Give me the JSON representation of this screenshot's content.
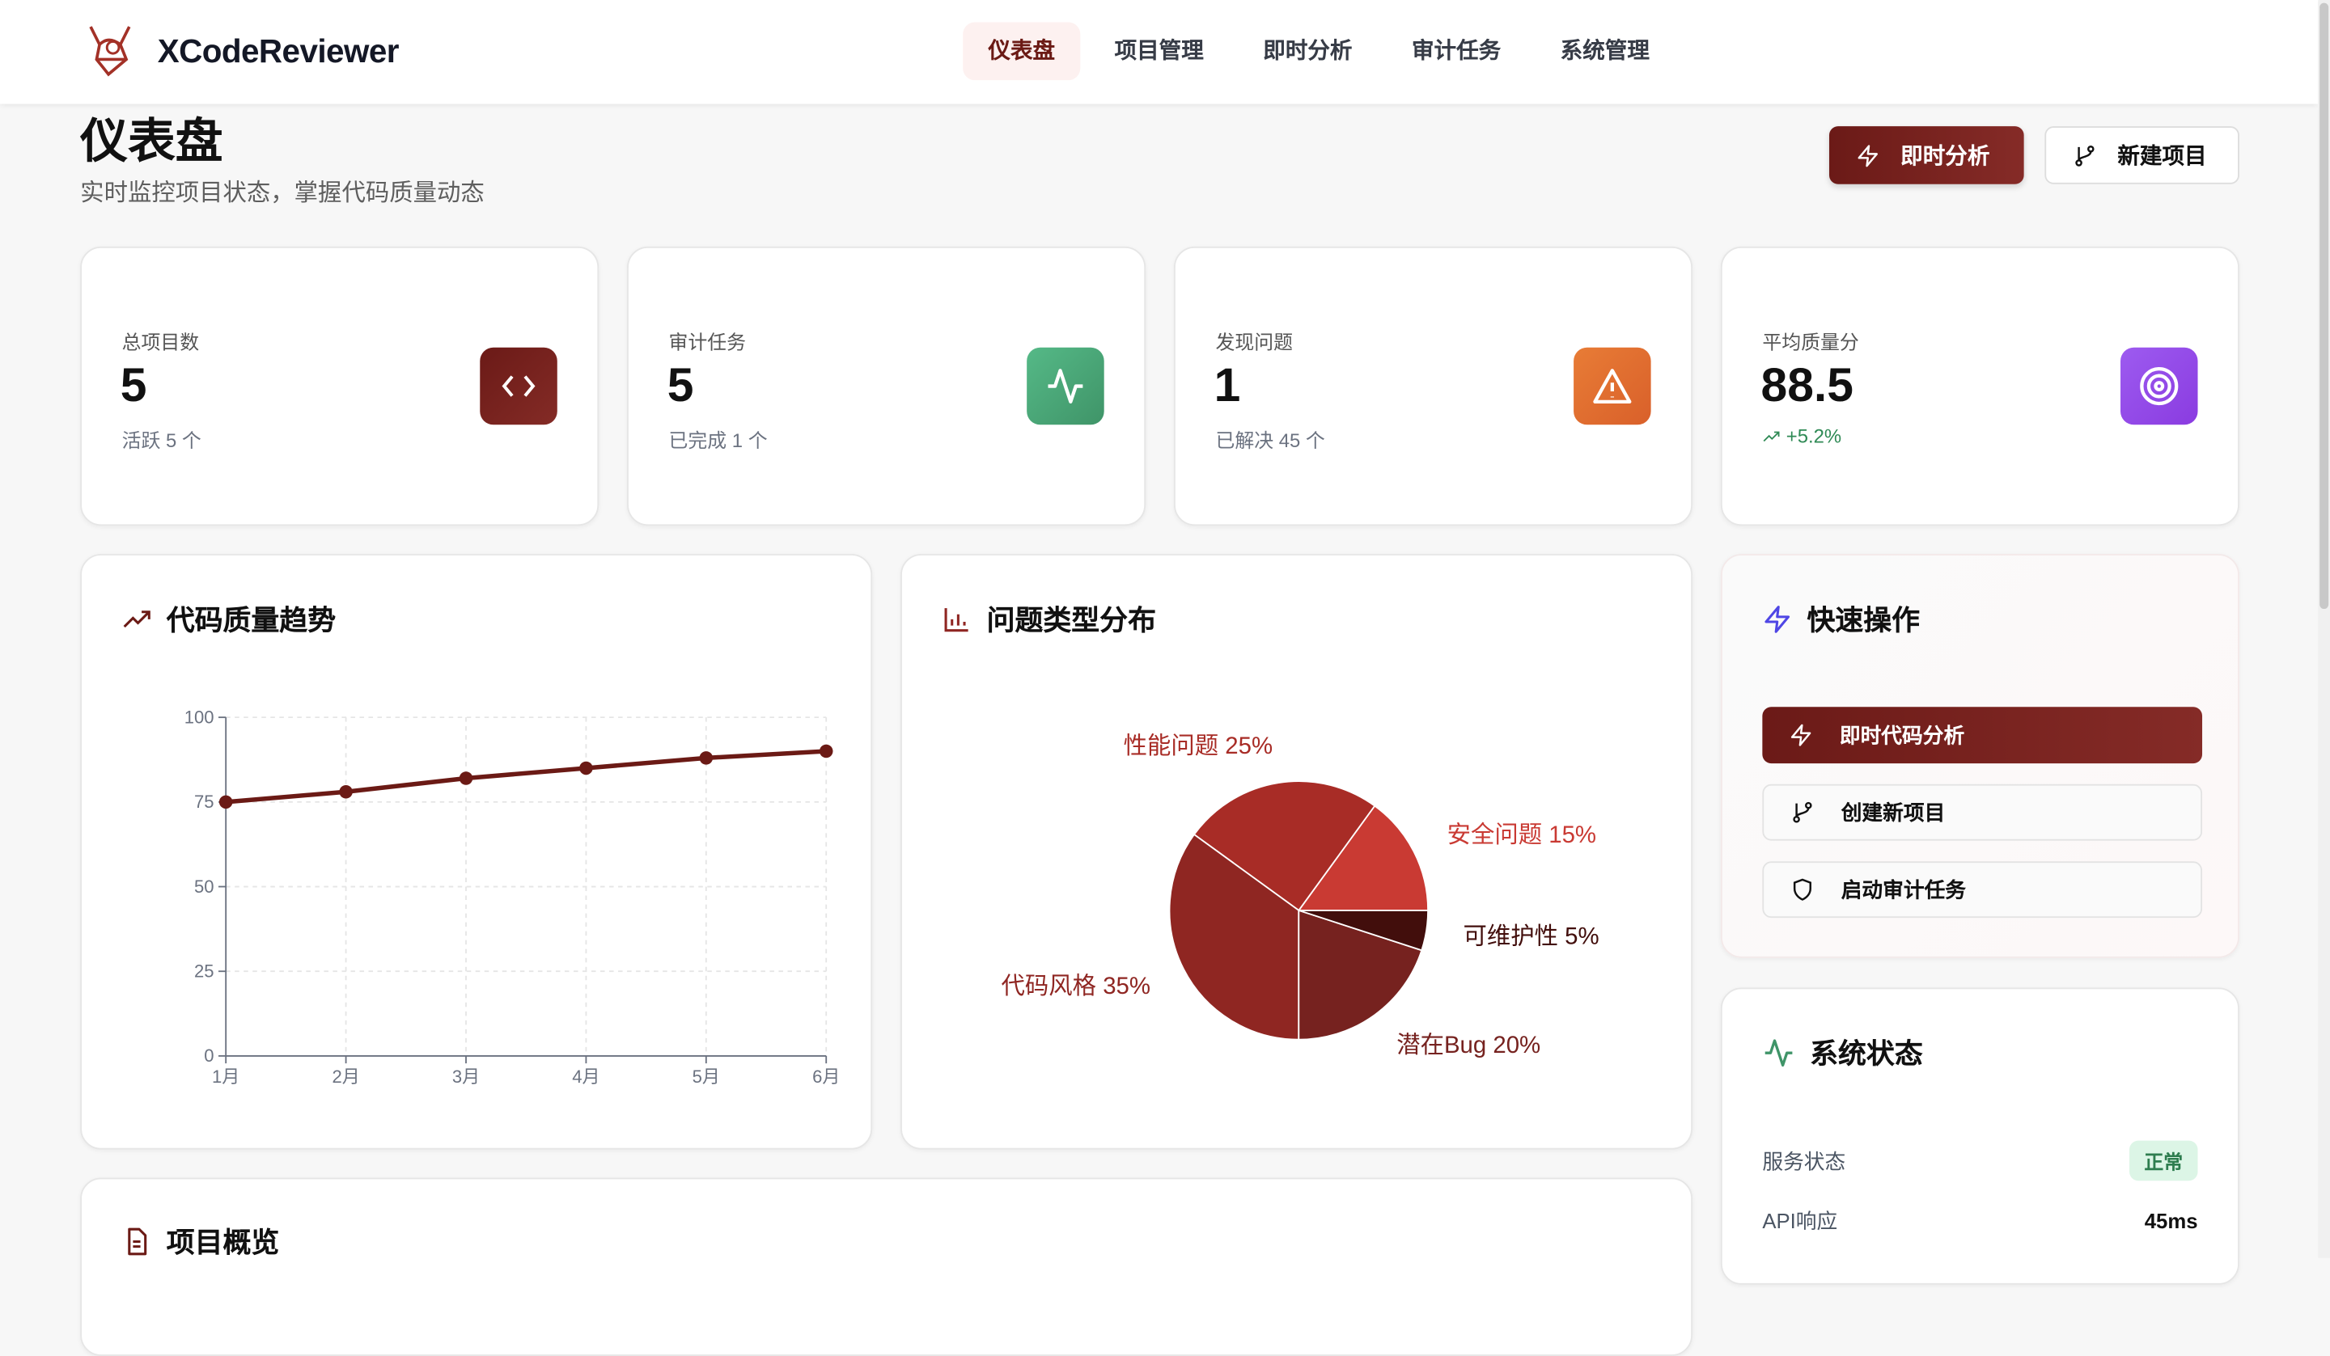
{
  "header": {
    "brand": "XCodeReviewer",
    "nav": [
      {
        "label": "仪表盘",
        "active": true
      },
      {
        "label": "项目管理"
      },
      {
        "label": "即时分析"
      },
      {
        "label": "审计任务"
      },
      {
        "label": "系统管理"
      }
    ]
  },
  "page": {
    "title": "仪表盘",
    "subtitle": "实时监控项目状态，掌握代码质量动态",
    "actions": {
      "instant": "即时分析",
      "new_project": "新建项目"
    }
  },
  "stats": [
    {
      "label": "总项目数",
      "value": "5",
      "sub": "活跃 5 个",
      "icon": "code-icon",
      "color": "#7a221e"
    },
    {
      "label": "审计任务",
      "value": "5",
      "sub": "已完成 1 个",
      "icon": "activity-icon",
      "color": "#4aa876"
    },
    {
      "label": "发现问题",
      "value": "1",
      "sub": "已解决 45 个",
      "icon": "alert-triangle-icon",
      "color": "#e06f30"
    },
    {
      "label": "平均质量分",
      "value": "88.5",
      "sub": "+5.2%",
      "icon": "target-icon",
      "color": "#9146e8",
      "sub_color": "#2f8a55"
    }
  ],
  "trend": {
    "title": "代码质量趋势"
  },
  "dist": {
    "title": "问题类型分布"
  },
  "quick": {
    "title": "快速操作",
    "buttons": [
      "即时代码分析",
      "创建新项目",
      "启动审计任务"
    ]
  },
  "system": {
    "title": "系统状态",
    "rows": [
      {
        "label": "服务状态",
        "value": "正常"
      },
      {
        "label": "API响应",
        "value": "45ms"
      }
    ]
  },
  "overview": {
    "title": "项目概览"
  },
  "chart_data": [
    {
      "type": "line",
      "categories": [
        "1月",
        "2月",
        "3月",
        "4月",
        "5月",
        "6月"
      ],
      "values": [
        75,
        78,
        82,
        85,
        88,
        90
      ],
      "ylim": [
        0,
        100
      ],
      "yticks": [
        0,
        25,
        50,
        75,
        100
      ],
      "grid": true,
      "color": "#6b1a15"
    },
    {
      "type": "pie",
      "slices": [
        {
          "name": "安全问题",
          "value": 15,
          "label": "安全问题 15%",
          "color": "#c93a33"
        },
        {
          "name": "性能问题",
          "value": 25,
          "label": "性能问题 25%",
          "color": "#a82c26"
        },
        {
          "name": "代码风格",
          "value": 35,
          "label": "代码风格 35%",
          "color": "#8f2622"
        },
        {
          "name": "潜在Bug",
          "value": 20,
          "label": "潜在Bug 20%",
          "color": "#76221f"
        },
        {
          "name": "可维护性",
          "value": 5,
          "label": "可维护性 5%",
          "color": "#420e0c"
        }
      ]
    }
  ]
}
